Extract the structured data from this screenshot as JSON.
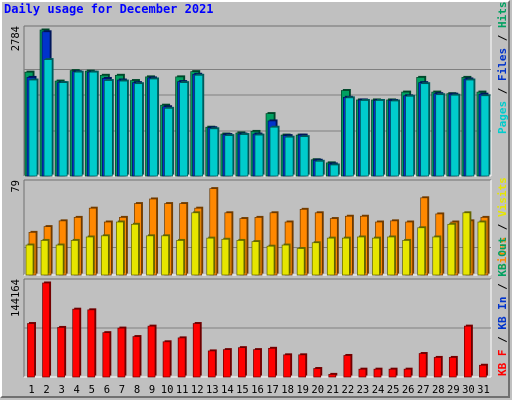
{
  "title": "Daily usage for December 2021",
  "colors": {
    "hits": "#00cccc",
    "files": "#0033cc",
    "pages": "#00a060",
    "visits": "#e6e600",
    "sites": "#ff8800",
    "kbytes": "#ff0000",
    "kb_in": "#0033cc",
    "kb_out": "#00a060",
    "weekend_day": "#00805c"
  },
  "chart_data": [
    {
      "type": "bar",
      "panel": "top",
      "y_tick_label": "2784",
      "ylim": [
        0,
        2784
      ],
      "legend": [
        "Pages",
        "Files",
        "Hits"
      ],
      "categories": [
        "1",
        "2",
        "3",
        "4",
        "5",
        "6",
        "7",
        "8",
        "9",
        "10",
        "11",
        "12",
        "13",
        "14",
        "15",
        "16",
        "17",
        "18",
        "19",
        "20",
        "21",
        "22",
        "23",
        "24",
        "25",
        "26",
        "27",
        "28",
        "29",
        "30",
        "31"
      ],
      "series": [
        {
          "name": "Pages",
          "values": [
            1980,
            2784,
            1810,
            2010,
            2000,
            1920,
            1920,
            1820,
            1890,
            1350,
            1890,
            1990,
            930,
            800,
            820,
            850,
            1190,
            780,
            780,
            310,
            250,
            1630,
            1450,
            1450,
            1450,
            1600,
            1880,
            1600,
            1570,
            1880,
            1600
          ]
        },
        {
          "name": "Files",
          "values": [
            1880,
            2750,
            1780,
            1990,
            1980,
            1860,
            1830,
            1780,
            1870,
            1320,
            1800,
            1940,
            920,
            790,
            800,
            800,
            1050,
            770,
            780,
            300,
            230,
            1500,
            1450,
            1440,
            1440,
            1530,
            1780,
            1570,
            1560,
            1850,
            1560
          ]
        },
        {
          "name": "Hits",
          "values": [
            1830,
            2220,
            1780,
            1980,
            1980,
            1820,
            1810,
            1760,
            1850,
            1290,
            1780,
            1920,
            900,
            770,
            790,
            780,
            930,
            740,
            750,
            280,
            210,
            1490,
            1440,
            1440,
            1430,
            1520,
            1760,
            1550,
            1540,
            1830,
            1530
          ]
        }
      ]
    },
    {
      "type": "bar",
      "panel": "middle",
      "y_tick_label": "79",
      "ylim": [
        0,
        79
      ],
      "legend": [
        "Visits",
        "Sites"
      ],
      "series": [
        {
          "name": "Sites",
          "values": [
            37,
            42,
            47,
            50,
            58,
            46,
            50,
            62,
            66,
            62,
            62,
            58,
            75,
            54,
            49,
            50,
            54,
            46,
            57,
            54,
            49,
            51,
            51,
            46,
            47,
            46,
            67,
            53,
            46,
            47,
            50
          ]
        },
        {
          "name": "Visits",
          "values": [
            26,
            30,
            26,
            30,
            33,
            34,
            46,
            44,
            34,
            34,
            30,
            54,
            32,
            31,
            30,
            29,
            25,
            26,
            23,
            28,
            32,
            32,
            33,
            32,
            33,
            30,
            41,
            33,
            44,
            54,
            46
          ]
        }
      ]
    },
    {
      "type": "bar",
      "panel": "bottom",
      "y_tick_label": "144164",
      "ylim": [
        0,
        144164
      ],
      "legend": [
        "KB F",
        "KB In",
        "KB Out"
      ],
      "series": [
        {
          "name": "KB F",
          "values": [
            82000,
            144164,
            76000,
            104000,
            103000,
            68000,
            75000,
            62000,
            78000,
            54000,
            60000,
            82000,
            40000,
            42000,
            45000,
            42000,
            44000,
            34000,
            34000,
            13000,
            4000,
            33000,
            12000,
            12000,
            12000,
            12000,
            36000,
            30000,
            30000,
            78000,
            18000
          ]
        }
      ]
    }
  ]
}
